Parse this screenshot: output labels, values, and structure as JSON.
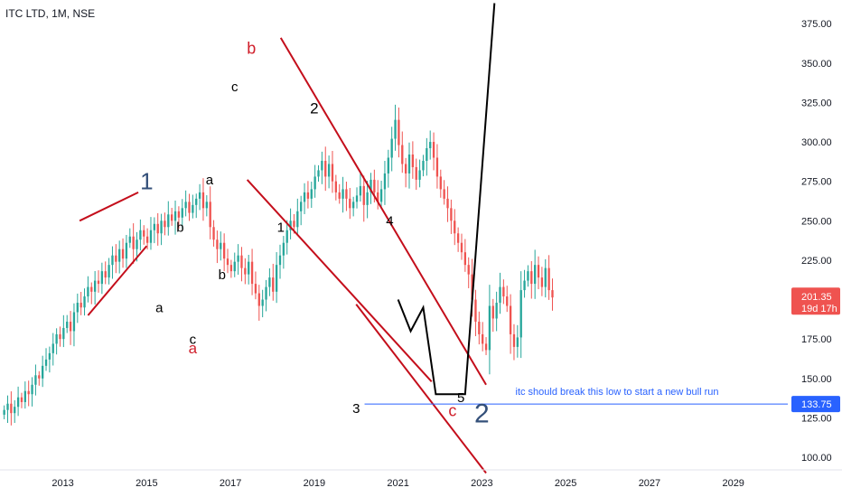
{
  "header": {
    "symbol_line": "ITC LTD, 1M, NSE"
  },
  "colors": {
    "up": "#26a69a",
    "down": "#ef5350",
    "channel": "#c40e1b",
    "projection": "#000000",
    "support": "#2962ff",
    "wave_blue": "#34507a",
    "wave_red": "#d01f2b",
    "price_badge": "#ef5350",
    "support_badge": "#2962ff"
  },
  "chart_data": {
    "type": "candlestick",
    "title": "ITC LTD, 1M, NSE",
    "xlabel": "",
    "ylabel": "",
    "x_ticks": [
      "2013",
      "2015",
      "2017",
      "2019",
      "2021",
      "2023",
      "2025",
      "2027",
      "2029"
    ],
    "y_ticks": [
      "100.00",
      "125.00",
      "150.00",
      "175.00",
      "200.00",
      "225.00",
      "250.00",
      "275.00",
      "300.00",
      "325.00",
      "350.00",
      "375.00"
    ],
    "ylim": [
      92,
      390
    ],
    "xlim": [
      2011.5,
      2030.3
    ],
    "last_price": {
      "value": "201.35",
      "countdown": "19d 17h"
    },
    "support": {
      "value": "133.75",
      "label": "itc should break this low to start a new bull run",
      "from": 2020.2
    },
    "closes": [
      130,
      134,
      128,
      132,
      138,
      135,
      142,
      140,
      146,
      152,
      150,
      158,
      162,
      166,
      172,
      178,
      175,
      182,
      186,
      180,
      192,
      198,
      195,
      202,
      208,
      205,
      212,
      210,
      218,
      214,
      222,
      228,
      224,
      232,
      226,
      236,
      240,
      232,
      238,
      244,
      240,
      236,
      244,
      248,
      242,
      250,
      246,
      254,
      250,
      256,
      252,
      258,
      262,
      255,
      260,
      264,
      268,
      258,
      262,
      246,
      238,
      232,
      236,
      226,
      222,
      218,
      224,
      228,
      220,
      216,
      224,
      210,
      204,
      196,
      200,
      208,
      214,
      205,
      222,
      228,
      236,
      244,
      250,
      246,
      256,
      262,
      268,
      264,
      270,
      278,
      282,
      288,
      278,
      286,
      275,
      268,
      264,
      270,
      264,
      258,
      262,
      266,
      272,
      260,
      268,
      276,
      268,
      262,
      270,
      280,
      290,
      302,
      314,
      298,
      286,
      280,
      292,
      284,
      276,
      282,
      288,
      296,
      300,
      290,
      278,
      270,
      264,
      258,
      250,
      242,
      236,
      230,
      222,
      216,
      200,
      186,
      178,
      172,
      168,
      196,
      188,
      198,
      208,
      202,
      196,
      178,
      170,
      176,
      206,
      212,
      218,
      210,
      222,
      214,
      208,
      220,
      206,
      201.35
    ],
    "wave_labels": [
      {
        "text": "1",
        "color": "wave_blue",
        "size": 26
      },
      {
        "text": "a",
        "color": "black",
        "size": 15
      },
      {
        "text": "b",
        "color": "black",
        "size": 15
      },
      {
        "text": "c",
        "color": "black",
        "size": 15
      },
      {
        "text": "a",
        "color": "wave_red",
        "size": 17
      },
      {
        "text": "a",
        "color": "black",
        "size": 15
      },
      {
        "text": "b",
        "color": "black",
        "size": 15
      },
      {
        "text": "c",
        "color": "black",
        "size": 15
      },
      {
        "text": "b",
        "color": "wave_red",
        "size": 18
      },
      {
        "text": "1",
        "color": "black",
        "size": 15
      },
      {
        "text": "2",
        "color": "black",
        "size": 17
      },
      {
        "text": "3",
        "color": "black",
        "size": 15
      },
      {
        "text": "4",
        "color": "black",
        "size": 15
      },
      {
        "text": "5",
        "color": "black",
        "size": 15
      },
      {
        "text": "c",
        "color": "wave_red",
        "size": 18
      },
      {
        "text": "2",
        "color": "wave_blue",
        "size": 30
      }
    ]
  }
}
